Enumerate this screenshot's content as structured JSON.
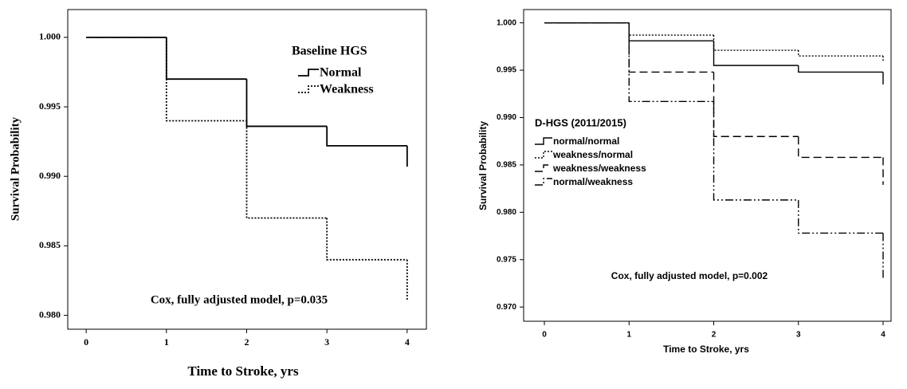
{
  "chart_data": [
    {
      "type": "step",
      "x_label": "Time to Stroke, yrs",
      "y_label": "Survival Probability",
      "legend_title": "Baseline HGS",
      "annotation": "Cox, fully adjusted model, p=0.035",
      "x": [
        0,
        1,
        2,
        3,
        4,
        4
      ],
      "series": [
        {
          "name": "Normal",
          "color": "#000000",
          "style": "solid",
          "values": [
            1.0,
            0.997,
            0.9936,
            0.9922,
            0.9922,
            0.9907
          ]
        },
        {
          "name": "Weakness",
          "color": "#000000",
          "style": "dotted",
          "values": [
            1.0,
            0.994,
            0.987,
            0.984,
            0.984,
            0.9811
          ]
        }
      ],
      "xlim": [
        -0.23,
        4.24
      ],
      "xticks": [
        0,
        1,
        2,
        3,
        4
      ],
      "ylim": [
        0.979,
        1.002
      ],
      "yticks": [
        {
          "value": 0.98,
          "label": "0.980"
        },
        0.985,
        {
          "value": 0.99,
          "label": "0.990"
        },
        0.995,
        {
          "value": 1,
          "label": "1.000"
        }
      ]
    },
    {
      "type": "step",
      "x_label": "Time to Stroke, yrs",
      "y_label": "Survival Probability",
      "legend_title": "D-HGS (2011/2015)",
      "annotation": "Cox, fully adjusted model, p=0.002",
      "x": [
        0,
        1,
        2,
        3,
        4,
        4
      ],
      "series": [
        {
          "name": "normal/normal",
          "color": "#000000",
          "style": "solid",
          "values": [
            1.0,
            0.9981,
            0.9955,
            0.9948,
            0.9948,
            0.9935
          ]
        },
        {
          "name": "weakness/normal",
          "color": "#000000",
          "style": "dotted",
          "values": [
            1.0,
            0.9987,
            0.9971,
            0.9965,
            0.9965,
            0.9959
          ]
        },
        {
          "name": "weakness/weakness",
          "color": "#000000",
          "style": "dashed",
          "values": [
            1.0,
            0.9948,
            0.988,
            0.9858,
            0.9858,
            0.9829
          ]
        },
        {
          "name": "normal/weakness",
          "color": "#000000",
          "style": "dashdotdot",
          "values": [
            1.0,
            0.9917,
            0.9813,
            0.9778,
            0.9778,
            0.9729
          ]
        }
      ],
      "xlim": [
        -0.245,
        4.094
      ],
      "xticks": [
        0,
        1,
        2,
        3,
        4
      ],
      "ylim": [
        0.9685,
        1.0014
      ],
      "yticks": [
        {
          "value": 0.97,
          "label": "0.970"
        },
        0.975,
        {
          "value": 0.98,
          "label": "0.980"
        },
        0.985,
        {
          "value": 0.99,
          "label": "0.990"
        },
        0.995,
        {
          "value": 1,
          "label": "1.000"
        }
      ]
    }
  ]
}
